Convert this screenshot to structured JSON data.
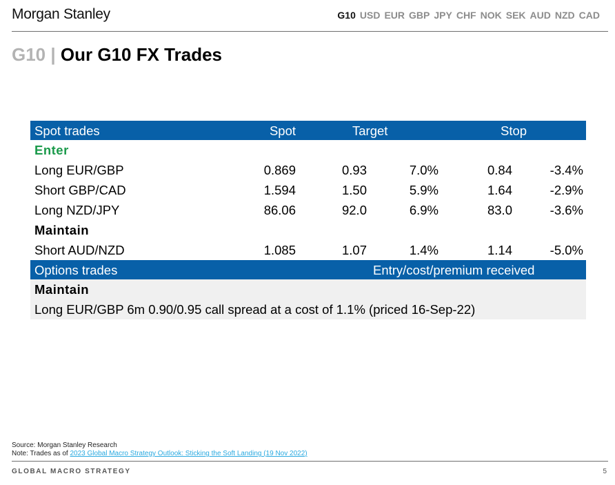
{
  "brand": "Morgan Stanley",
  "nav": [
    "G10",
    "USD",
    "EUR",
    "GBP",
    "JPY",
    "CHF",
    "NOK",
    "SEK",
    "AUD",
    "NZD",
    "CAD"
  ],
  "title": {
    "section": "G10",
    "separator": "|",
    "main": "Our G10 FX Trades"
  },
  "spot_header": {
    "label": "Spot trades",
    "spot": "Spot",
    "target": "Target",
    "stop": "Stop"
  },
  "groups": {
    "enter": "Enter",
    "maintain": "Maintain"
  },
  "spot_trades": [
    {
      "name": "Long EUR/GBP",
      "spot": "0.869",
      "target": "0.93",
      "target_pct": "7.0%",
      "stop": "0.84",
      "stop_pct": "-3.4%"
    },
    {
      "name": "Short GBP/CAD",
      "spot": "1.594",
      "target": "1.50",
      "target_pct": "5.9%",
      "stop": "1.64",
      "stop_pct": "-2.9%"
    },
    {
      "name": "Long NZD/JPY",
      "spot": "86.06",
      "target": "92.0",
      "target_pct": "6.9%",
      "stop": "83.0",
      "stop_pct": "-3.6%"
    },
    {
      "name": "Short AUD/NZD",
      "spot": "1.085",
      "target": "1.07",
      "target_pct": "1.4%",
      "stop": "1.14",
      "stop_pct": "-5.0%"
    }
  ],
  "options_header": {
    "label": "Options trades",
    "entry": "Entry/cost/premium received"
  },
  "options": {
    "group": "Maintain",
    "text": "Long EUR/GBP 6m 0.90/0.95 call spread at a cost of 1.1% (priced 16-Sep-22)"
  },
  "source": {
    "line1": "Source: Morgan Stanley Research",
    "note_prefix": "Note: Trades as of ",
    "link": "2023 Global Macro Strategy Outlook: Sticking the Soft Landing (19 Nov 2022)"
  },
  "footer": {
    "label": "GLOBAL MACRO STRATEGY",
    "page": "5"
  },
  "colors": {
    "header_blue": "#0860a8",
    "enter_green": "#1b9a4b",
    "link_blue": "#29a9e0",
    "options_bg": "#f0f0f0"
  }
}
